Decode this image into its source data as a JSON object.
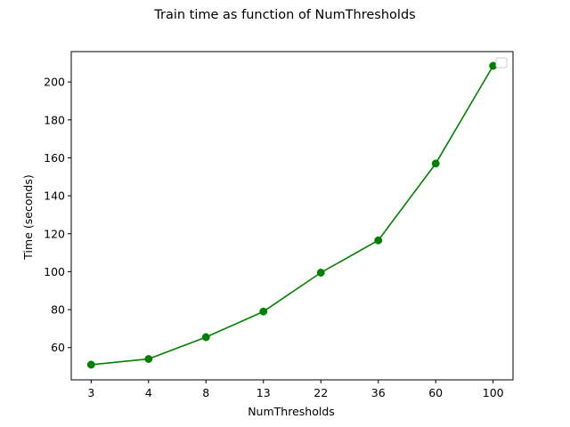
{
  "chart_data": {
    "type": "line",
    "title": "Train time as function of NumThresholds",
    "xlabel": "NumThresholds",
    "ylabel": "Time (seconds)",
    "x_scale": "categorical",
    "categories": [
      "3",
      "4",
      "8",
      "13",
      "22",
      "36",
      "60",
      "100"
    ],
    "series": [
      {
        "values": [
          51,
          54,
          65.5,
          79,
          99.5,
          116.5,
          157,
          208.5
        ],
        "color": "#008000",
        "marker": "circle"
      }
    ],
    "ylim": [
      43,
      216
    ],
    "yticks": [
      60,
      80,
      100,
      120,
      140,
      160,
      180,
      200
    ],
    "legend": {
      "placement": "top-right",
      "entries": []
    },
    "grid": false
  }
}
